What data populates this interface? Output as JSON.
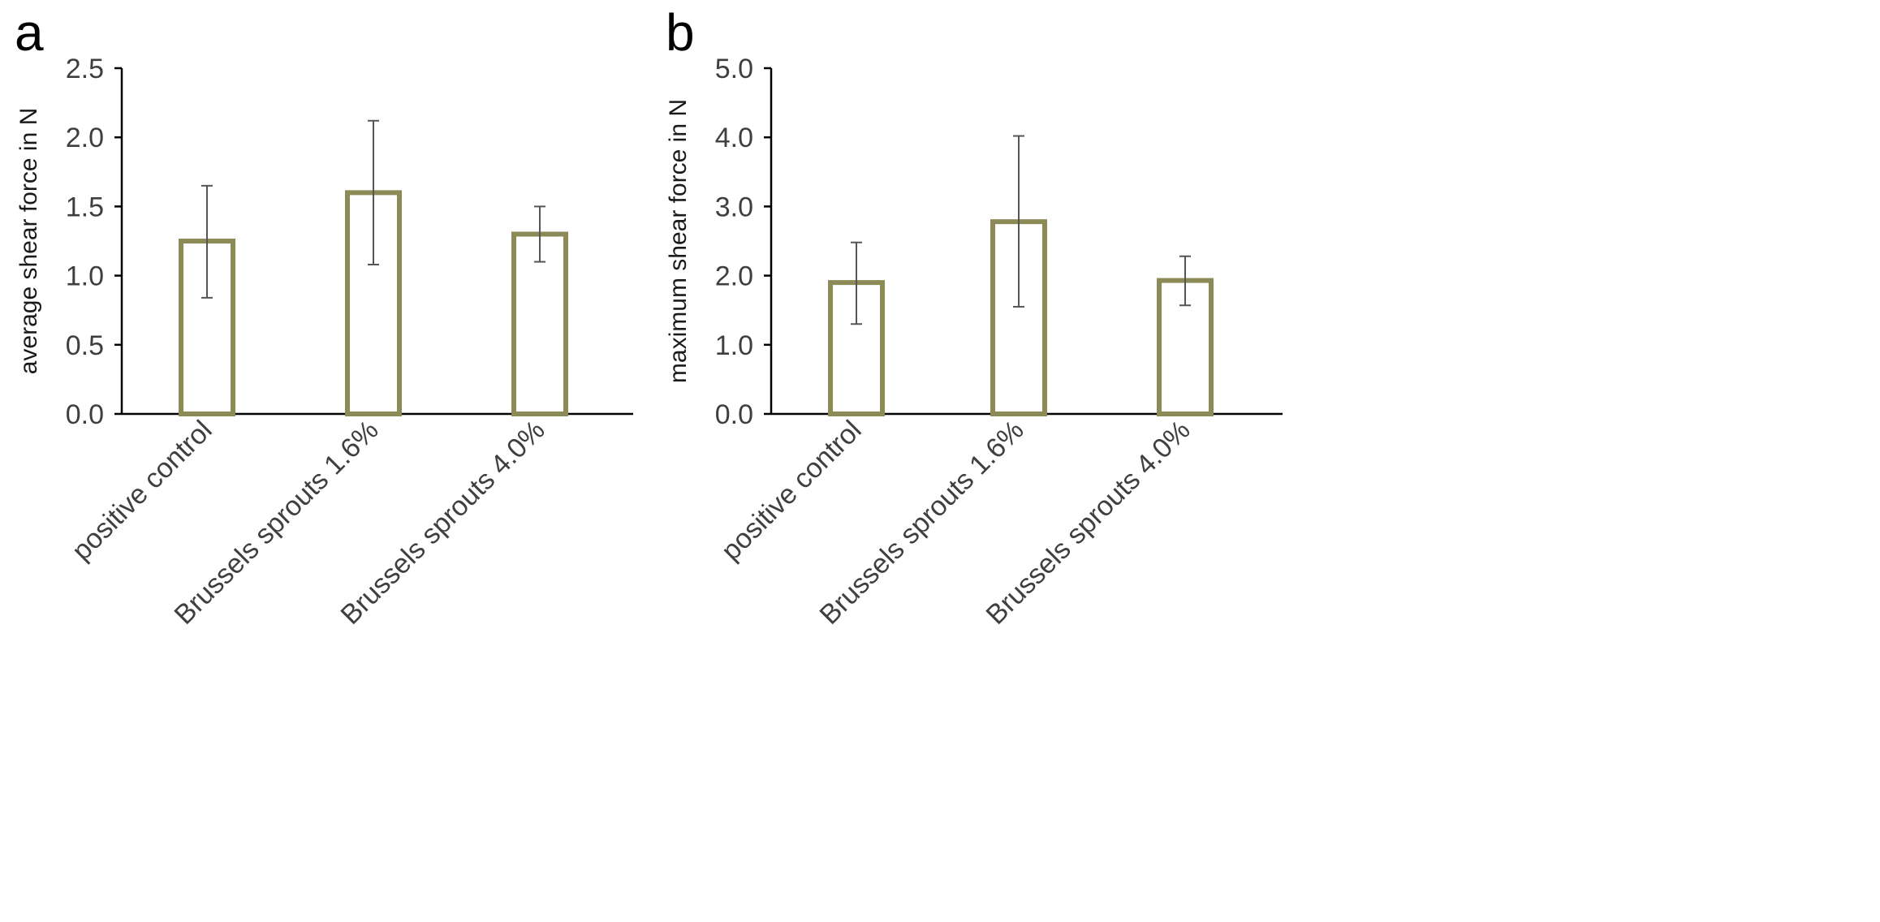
{
  "colors": {
    "bar_outline": "#8c8a57",
    "axis": "#000000",
    "error_bar": "#555555"
  },
  "chart_data": [
    {
      "panel": "a",
      "type": "bar",
      "title": "",
      "xlabel": "",
      "ylabel": "average shear force in N",
      "ylim": [
        0,
        2.5
      ],
      "yticks": [
        0,
        0.5,
        1.0,
        1.5,
        2.0,
        2.5
      ],
      "ytick_labels": [
        "0.0",
        "0.5",
        "1.0",
        "1.5",
        "2.0",
        "2.5"
      ],
      "categories": [
        "positive control",
        "Brussels sprouts 1.6%",
        "Brussels sprouts 4.0%"
      ],
      "values": [
        1.25,
        1.6,
        1.3
      ],
      "error_low": [
        0.84,
        1.08,
        1.1
      ],
      "error_high": [
        1.65,
        2.12,
        1.5
      ],
      "grid": false
    },
    {
      "panel": "b",
      "type": "bar",
      "title": "",
      "xlabel": "",
      "ylabel": "maximum shear force in N",
      "ylim": [
        0,
        5.0
      ],
      "yticks": [
        0,
        1.0,
        2.0,
        3.0,
        4.0,
        5.0
      ],
      "ytick_labels": [
        "0.0",
        "1.0",
        "2.0",
        "3.0",
        "4.0",
        "5.0"
      ],
      "categories": [
        "positive control",
        "Brussels sprouts 1.6%",
        "Brussels sprouts 4.0%"
      ],
      "values": [
        1.9,
        2.78,
        1.93
      ],
      "error_low": [
        1.3,
        1.55,
        1.57
      ],
      "error_high": [
        2.48,
        4.02,
        2.28
      ],
      "grid": false
    }
  ]
}
